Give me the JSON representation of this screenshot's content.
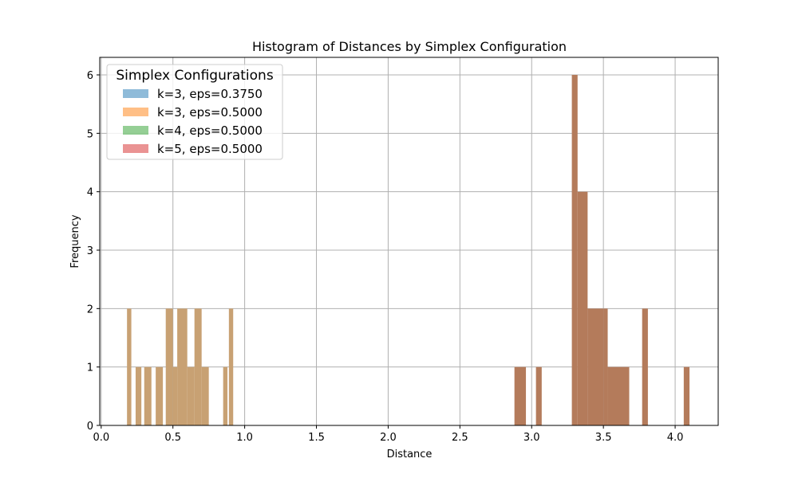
{
  "chart_data": {
    "type": "bar",
    "title": "Histogram of Distances by Simplex Configuration",
    "xlabel": "Distance",
    "ylabel": "Frequency",
    "xlim": [
      -0.01,
      4.3
    ],
    "ylim": [
      0,
      6.3
    ],
    "xticks": [
      "0.0",
      "0.5",
      "1.0",
      "1.5",
      "2.0",
      "2.5",
      "3.0",
      "3.5",
      "4.0"
    ],
    "xtick_values": [
      0,
      0.5,
      1.0,
      1.5,
      2.0,
      2.5,
      3.0,
      3.5,
      4.0
    ],
    "yticks": [
      "0",
      "1",
      "2",
      "3",
      "4",
      "5",
      "6"
    ],
    "ytick_values": [
      0,
      1,
      2,
      3,
      4,
      5,
      6
    ],
    "grid": true,
    "legend": {
      "title": "Simplex Configurations",
      "placement": "top-left",
      "entries": [
        {
          "label": "k=3, eps=0.3750",
          "color": "#1f77b4"
        },
        {
          "label": "k=3, eps=0.5000",
          "color": "#ff7f0e"
        },
        {
          "label": "k=4, eps=0.5000",
          "color": "#2ca02c"
        },
        {
          "label": "k=5, eps=0.5000",
          "color": "#d62728"
        }
      ]
    },
    "bar_alpha": 0.5,
    "groups": [
      {
        "series": [
          "k=3, eps=0.3750",
          "k=3, eps=0.5000"
        ],
        "color": "#c8a173",
        "bins": [
          {
            "x0": 0.18,
            "x1": 0.21,
            "count": 2
          },
          {
            "x0": 0.24,
            "x1": 0.28,
            "count": 1
          },
          {
            "x0": 0.3,
            "x1": 0.35,
            "count": 1
          },
          {
            "x0": 0.38,
            "x1": 0.43,
            "count": 1
          },
          {
            "x0": 0.45,
            "x1": 0.5,
            "count": 2
          },
          {
            "x0": 0.5,
            "x1": 0.53,
            "count": 1
          },
          {
            "x0": 0.53,
            "x1": 0.6,
            "count": 2
          },
          {
            "x0": 0.6,
            "x1": 0.65,
            "count": 1
          },
          {
            "x0": 0.65,
            "x1": 0.7,
            "count": 2
          },
          {
            "x0": 0.7,
            "x1": 0.75,
            "count": 1
          },
          {
            "x0": 0.85,
            "x1": 0.88,
            "count": 1
          },
          {
            "x0": 0.89,
            "x1": 0.92,
            "count": 2
          }
        ]
      },
      {
        "series": [
          "k=4, eps=0.5000",
          "k=5, eps=0.5000"
        ],
        "color": "#b47b5b",
        "bins": [
          {
            "x0": 2.88,
            "x1": 2.96,
            "count": 1
          },
          {
            "x0": 3.03,
            "x1": 3.07,
            "count": 1
          },
          {
            "x0": 3.28,
            "x1": 3.32,
            "count": 6
          },
          {
            "x0": 3.32,
            "x1": 3.39,
            "count": 4
          },
          {
            "x0": 3.39,
            "x1": 3.5,
            "count": 2
          },
          {
            "x0": 3.5,
            "x1": 3.53,
            "count": 2
          },
          {
            "x0": 3.53,
            "x1": 3.68,
            "count": 1
          },
          {
            "x0": 3.77,
            "x1": 3.81,
            "count": 2
          },
          {
            "x0": 4.06,
            "x1": 4.1,
            "count": 1
          }
        ]
      }
    ]
  }
}
